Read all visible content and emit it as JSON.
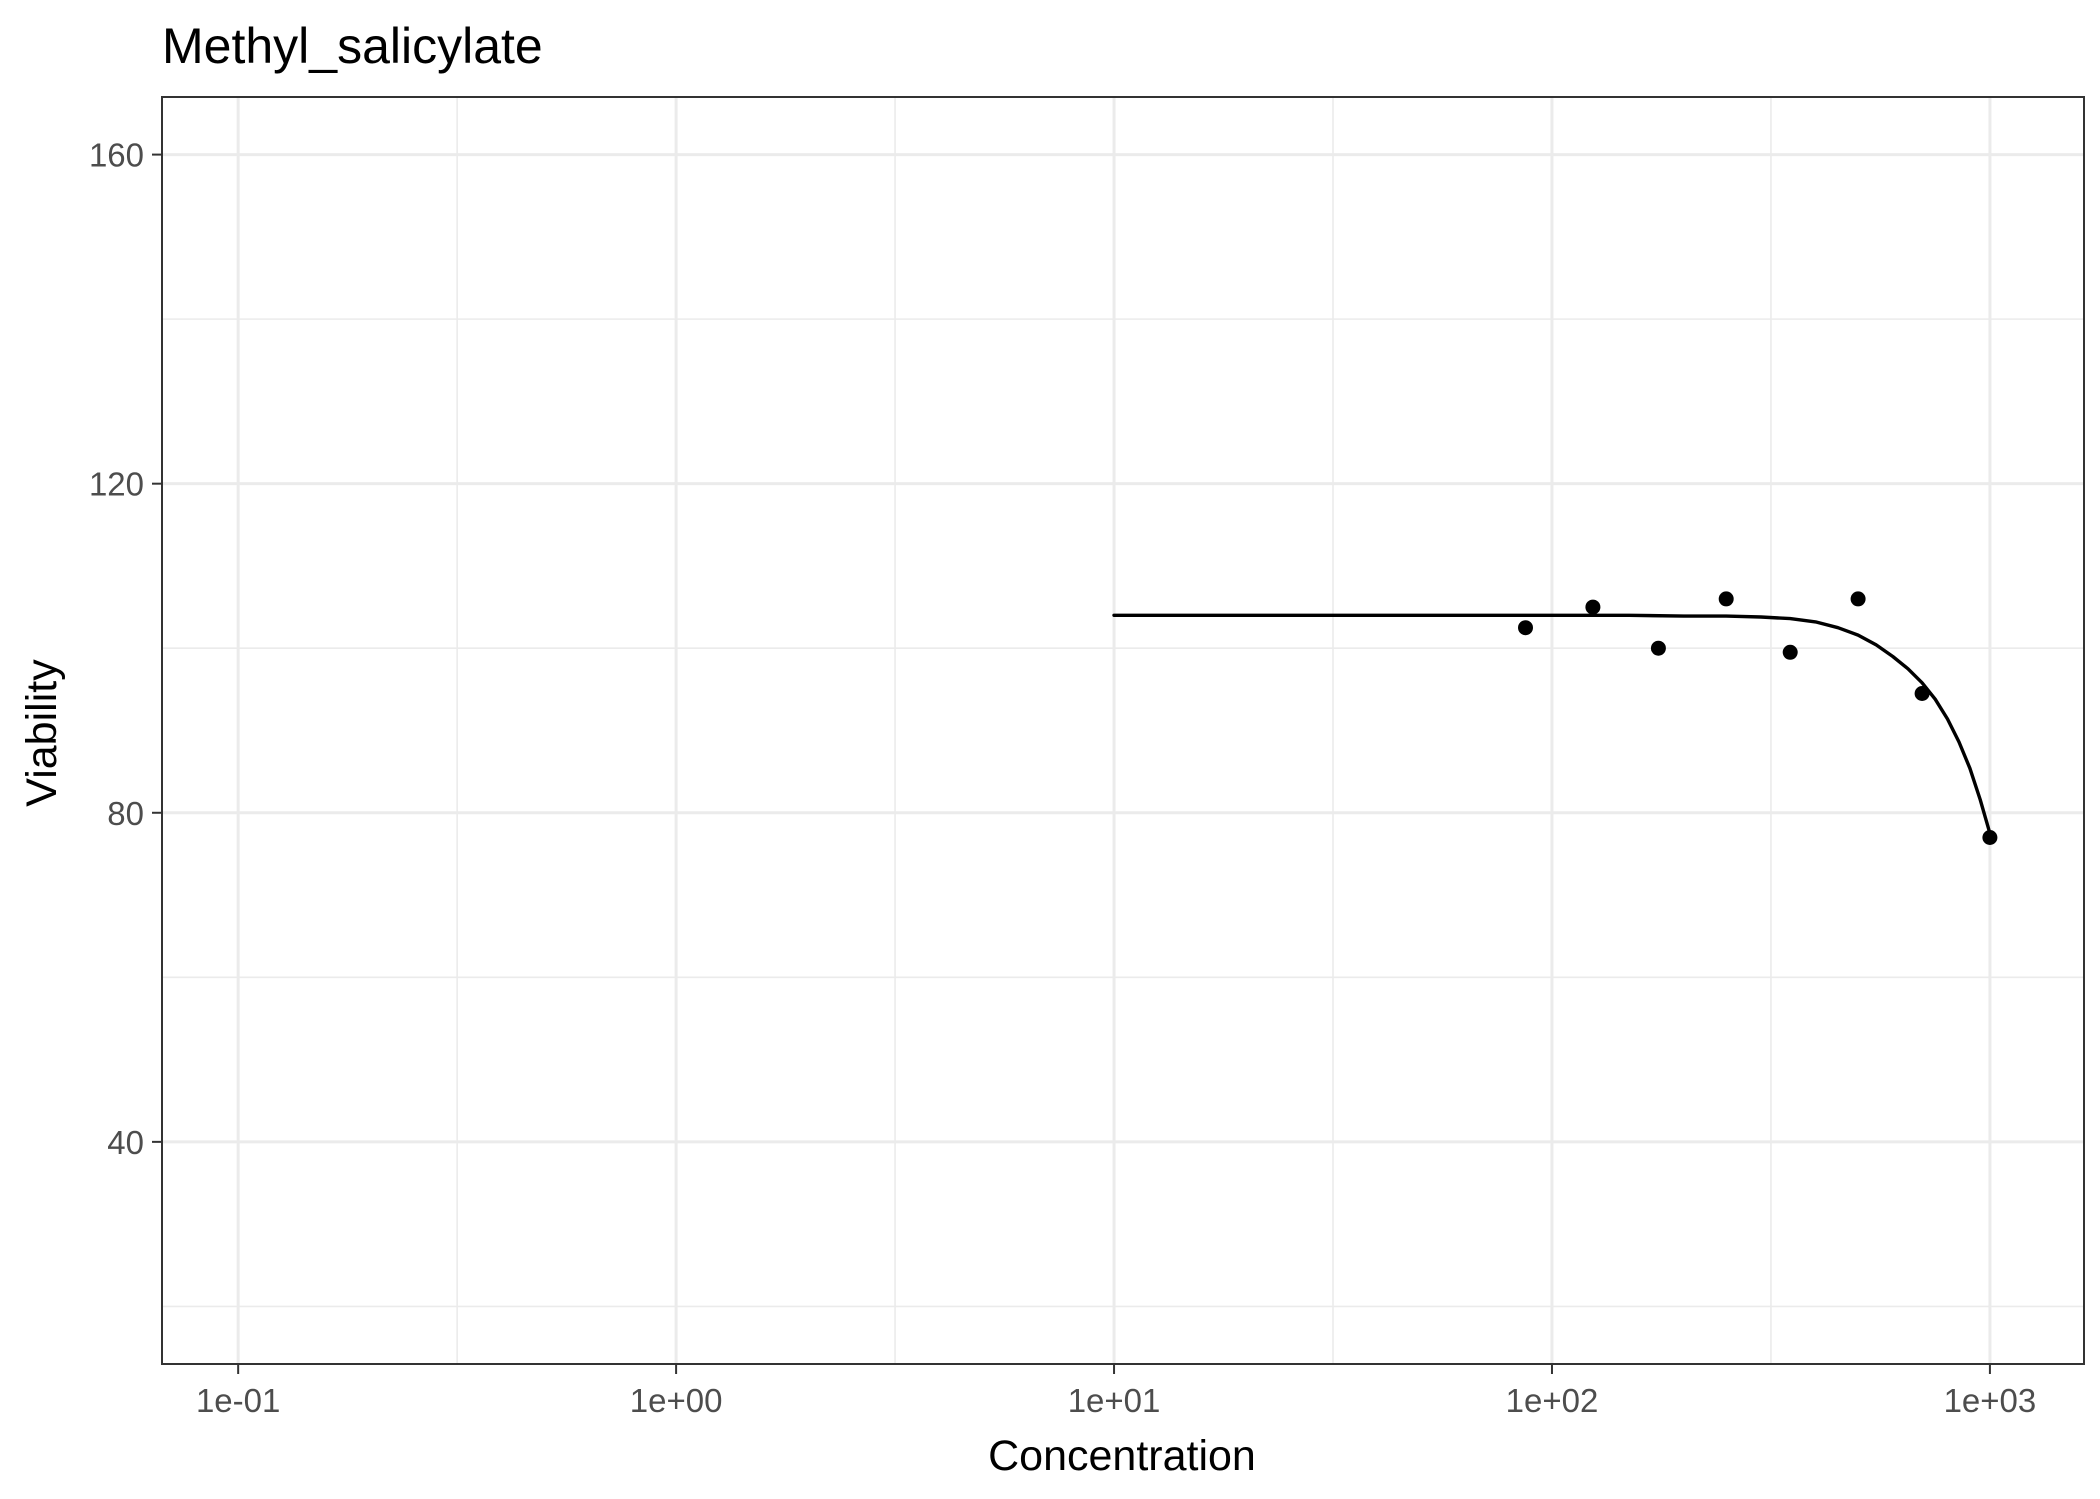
{
  "chart_data": {
    "type": "scatter",
    "title": "Methyl_salicylate",
    "xlabel": "Concentration",
    "ylabel": "Viability",
    "x_scale": "log10",
    "xlim": [
      0.067,
      1640
    ],
    "ylim": [
      13.0,
      167.0
    ],
    "x_ticks": [
      {
        "value": 0.1,
        "label": "1e-01"
      },
      {
        "value": 1,
        "label": "1e+00"
      },
      {
        "value": 10,
        "label": "1e+01"
      },
      {
        "value": 100,
        "label": "1e+02"
      },
      {
        "value": 1000,
        "label": "1e+03"
      }
    ],
    "y_ticks": [
      {
        "value": 40,
        "label": "40"
      },
      {
        "value": 80,
        "label": "80"
      },
      {
        "value": 120,
        "label": "120"
      },
      {
        "value": 160,
        "label": "160"
      }
    ],
    "grid": true,
    "legend": "none",
    "points": [
      {
        "x": 87,
        "y": 102.5
      },
      {
        "x": 124,
        "y": 105.0
      },
      {
        "x": 175,
        "y": 100.0
      },
      {
        "x": 250,
        "y": 106.0
      },
      {
        "x": 350,
        "y": 99.5
      },
      {
        "x": 500,
        "y": 106.0
      },
      {
        "x": 700,
        "y": 94.5
      },
      {
        "x": 1000,
        "y": 77.0
      }
    ],
    "fit_line": [
      {
        "x": 10,
        "y": 104.0
      },
      {
        "x": 30,
        "y": 104.0
      },
      {
        "x": 60,
        "y": 104.0
      },
      {
        "x": 100,
        "y": 104.0
      },
      {
        "x": 150,
        "y": 104.0
      },
      {
        "x": 200,
        "y": 103.9
      },
      {
        "x": 250,
        "y": 103.9
      },
      {
        "x": 300,
        "y": 103.8
      },
      {
        "x": 350,
        "y": 103.6
      },
      {
        "x": 400,
        "y": 103.2
      },
      {
        "x": 450,
        "y": 102.5
      },
      {
        "x": 500,
        "y": 101.6
      },
      {
        "x": 550,
        "y": 100.4
      },
      {
        "x": 600,
        "y": 99.0
      },
      {
        "x": 650,
        "y": 97.5
      },
      {
        "x": 700,
        "y": 95.8
      },
      {
        "x": 750,
        "y": 93.8
      },
      {
        "x": 800,
        "y": 91.4
      },
      {
        "x": 850,
        "y": 88.6
      },
      {
        "x": 900,
        "y": 85.4
      },
      {
        "x": 950,
        "y": 81.6
      },
      {
        "x": 1000,
        "y": 77.5
      }
    ],
    "colors": {
      "point": "#000000",
      "line": "#000000",
      "grid": "#ebebeb",
      "border": "#333333",
      "tick_label": "#4d4d4d"
    }
  }
}
